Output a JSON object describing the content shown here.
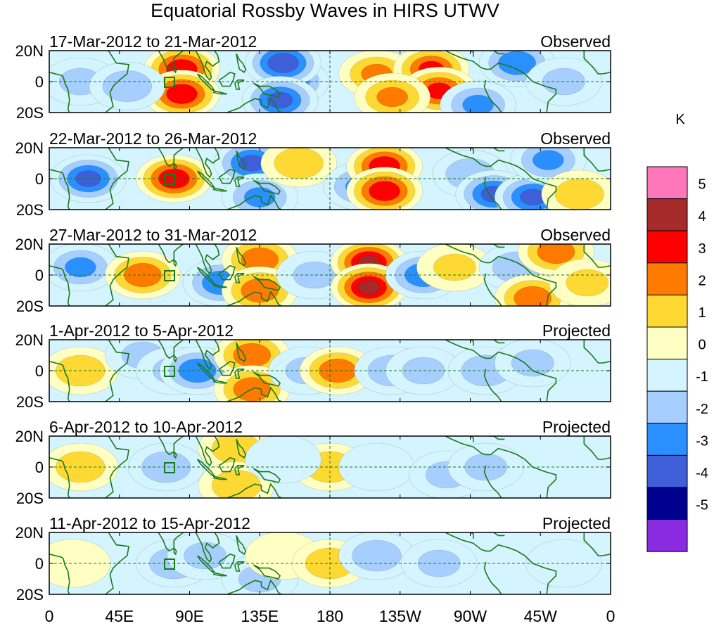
{
  "title": "Equatorial Rossby Waves in HIRS UTWV",
  "colorbar": {
    "unit": "K",
    "colors": [
      "#ff77bb",
      "#a52a2a",
      "#ff0000",
      "#ff7a00",
      "#ffd933",
      "#ffffc4",
      "#d4f4ff",
      "#a6ceff",
      "#2a90ff",
      "#3e5fd8",
      "#00008f",
      "#8a2be2"
    ],
    "labels": [
      "5",
      "4",
      "3",
      "2",
      "1",
      "0",
      "-1",
      "-2",
      "-3",
      "-4",
      "-5"
    ]
  },
  "axes": {
    "lat_labels": [
      "20N",
      "0",
      "20S"
    ],
    "lon_labels": [
      "0",
      "45E",
      "90E",
      "135E",
      "180",
      "135W",
      "90W",
      "45W",
      "0"
    ]
  },
  "panels": [
    {
      "date": "17-Mar-2012 to 21-Mar-2012",
      "type": "Observed"
    },
    {
      "date": "22-Mar-2012 to 26-Mar-2012",
      "type": "Observed"
    },
    {
      "date": "27-Mar-2012 to 31-Mar-2012",
      "type": "Observed"
    },
    {
      "date": "1-Apr-2012 to 5-Apr-2012",
      "type": "Projected"
    },
    {
      "date": "6-Apr-2012 to 10-Apr-2012",
      "type": "Projected"
    },
    {
      "date": "11-Apr-2012 to 15-Apr-2012",
      "type": "Projected"
    }
  ],
  "chart_data": {
    "type": "heatmap",
    "title": "Equatorial Rossby Waves in HIRS UTWV",
    "units": "K",
    "x_domain": [
      0,
      360
    ],
    "y_domain": [
      -20,
      20
    ],
    "contour_levels": [
      -5,
      -4,
      -3,
      -2,
      -1,
      0,
      1,
      2,
      3,
      4,
      5
    ],
    "anomaly_centers": [
      [
        {
          "lon": 85,
          "lat": 8,
          "v": 3.5
        },
        {
          "lon": 85,
          "lat": -8,
          "v": 3.5
        },
        {
          "lon": 155,
          "lat": 0,
          "v": -2.5
        },
        {
          "lon": 150,
          "lat": 12,
          "v": -3.5
        },
        {
          "lon": 148,
          "lat": -12,
          "v": -3
        },
        {
          "lon": 210,
          "lat": 5,
          "v": 2
        },
        {
          "lon": 245,
          "lat": 8,
          "v": 3
        },
        {
          "lon": 250,
          "lat": -6,
          "v": 3
        },
        {
          "lon": 220,
          "lat": -10,
          "v": 2
        },
        {
          "lon": 275,
          "lat": -15,
          "v": -2
        },
        {
          "lon": 300,
          "lat": 12,
          "v": -2.5
        },
        {
          "lon": 20,
          "lat": 0,
          "v": -1
        },
        {
          "lon": 50,
          "lat": -3,
          "v": -1.5
        },
        {
          "lon": 330,
          "lat": 0,
          "v": -1
        }
      ],
      [
        {
          "lon": 25,
          "lat": 0,
          "v": -3
        },
        {
          "lon": 80,
          "lat": 0,
          "v": 3.5
        },
        {
          "lon": 130,
          "lat": 10,
          "v": -3
        },
        {
          "lon": 135,
          "lat": -12,
          "v": -2
        },
        {
          "lon": 160,
          "lat": 10,
          "v": 1.5
        },
        {
          "lon": 200,
          "lat": -5,
          "v": -2
        },
        {
          "lon": 215,
          "lat": 8,
          "v": 3.5
        },
        {
          "lon": 215,
          "lat": -8,
          "v": 3.5
        },
        {
          "lon": 270,
          "lat": 3,
          "v": -1.5
        },
        {
          "lon": 285,
          "lat": -10,
          "v": -3
        },
        {
          "lon": 310,
          "lat": -12,
          "v": -3
        },
        {
          "lon": 320,
          "lat": 12,
          "v": -2
        },
        {
          "lon": 340,
          "lat": -10,
          "v": 1.5
        }
      ],
      [
        {
          "lon": 20,
          "lat": 5,
          "v": -2
        },
        {
          "lon": 60,
          "lat": 0,
          "v": 2.5
        },
        {
          "lon": 110,
          "lat": -5,
          "v": -2.5
        },
        {
          "lon": 135,
          "lat": 10,
          "v": 2.5
        },
        {
          "lon": 135,
          "lat": -10,
          "v": 2.5
        },
        {
          "lon": 170,
          "lat": 0,
          "v": -1
        },
        {
          "lon": 205,
          "lat": 8,
          "v": 4
        },
        {
          "lon": 205,
          "lat": -8,
          "v": 4
        },
        {
          "lon": 240,
          "lat": 0,
          "v": -2.5
        },
        {
          "lon": 260,
          "lat": 5,
          "v": 1
        },
        {
          "lon": 300,
          "lat": 5,
          "v": -1.5
        },
        {
          "lon": 325,
          "lat": 15,
          "v": 2.5
        },
        {
          "lon": 310,
          "lat": -15,
          "v": 2.5
        },
        {
          "lon": 345,
          "lat": -5,
          "v": 1
        }
      ],
      [
        {
          "lon": 20,
          "lat": 0,
          "v": 1.5
        },
        {
          "lon": 60,
          "lat": 10,
          "v": -1
        },
        {
          "lon": 80,
          "lat": 0,
          "v": -1
        },
        {
          "lon": 95,
          "lat": 0,
          "v": -2.5
        },
        {
          "lon": 130,
          "lat": 10,
          "v": 2.5
        },
        {
          "lon": 130,
          "lat": -12,
          "v": 2.5
        },
        {
          "lon": 165,
          "lat": 0,
          "v": -1
        },
        {
          "lon": 185,
          "lat": 0,
          "v": 2.5
        },
        {
          "lon": 220,
          "lat": 0,
          "v": -1.5
        },
        {
          "lon": 240,
          "lat": 0,
          "v": -1
        },
        {
          "lon": 280,
          "lat": 0,
          "v": -1.5
        },
        {
          "lon": 310,
          "lat": 5,
          "v": -1
        }
      ],
      [
        {
          "lon": 20,
          "lat": 0,
          "v": 1.5
        },
        {
          "lon": 75,
          "lat": 0,
          "v": -1.5
        },
        {
          "lon": 120,
          "lat": 12,
          "v": 1.5
        },
        {
          "lon": 120,
          "lat": -12,
          "v": 1.5
        },
        {
          "lon": 180,
          "lat": 0,
          "v": 1.5
        },
        {
          "lon": 150,
          "lat": 5,
          "v": -0.5
        },
        {
          "lon": 210,
          "lat": 0,
          "v": -0.5
        },
        {
          "lon": 255,
          "lat": -5,
          "v": -1
        },
        {
          "lon": 280,
          "lat": 0,
          "v": -1
        }
      ],
      [
        {
          "lon": 15,
          "lat": 0,
          "v": 0.5
        },
        {
          "lon": 80,
          "lat": 0,
          "v": -1.5
        },
        {
          "lon": 100,
          "lat": 5,
          "v": -1
        },
        {
          "lon": 135,
          "lat": -10,
          "v": -1
        },
        {
          "lon": 150,
          "lat": 5,
          "v": 0.5
        },
        {
          "lon": 180,
          "lat": 0,
          "v": 1.5
        },
        {
          "lon": 210,
          "lat": 5,
          "v": -1.5
        },
        {
          "lon": 250,
          "lat": 0,
          "v": -1
        },
        {
          "lon": 330,
          "lat": 0,
          "v": -0.5
        }
      ]
    ]
  }
}
